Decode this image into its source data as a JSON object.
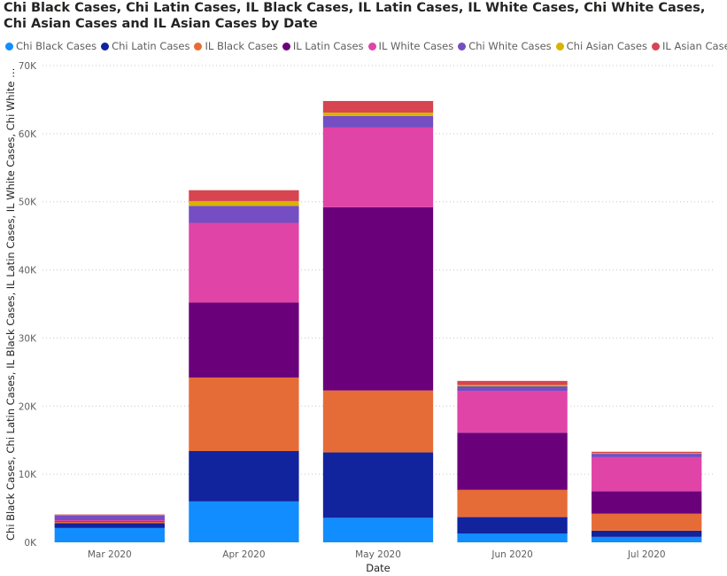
{
  "chart_data": {
    "type": "bar",
    "stacked": true,
    "title": "Chi Black Cases, Chi Latin Cases, IL Black Cases, IL Latin Cases, IL White Cases, Chi White Cases, Chi Asian Cases and IL Asian Cases by Date",
    "xlabel": "Date",
    "ylabel": "Chi Black Cases, Chi Latin Cases, IL Black Cases, IL Latin Cases, IL White Cases, Chi White Cases, Chi Asian Cases and IL Asian Cases",
    "ylim": [
      0,
      70000
    ],
    "yticks": [
      0,
      10000,
      20000,
      30000,
      40000,
      50000,
      60000,
      70000
    ],
    "ytick_labels": [
      "0K",
      "10K",
      "20K",
      "30K",
      "40K",
      "50K",
      "60K",
      "70K"
    ],
    "grid": true,
    "legend_position": "top-left",
    "categories": [
      "Mar 2020",
      "Apr 2020",
      "May 2020",
      "Jun 2020",
      "Jul 2020"
    ],
    "series": [
      {
        "name": "Chi Black Cases",
        "color": "#118DFF",
        "values": [
          2100,
          6000,
          3600,
          1300,
          800
        ]
      },
      {
        "name": "Chi Latin Cases",
        "color": "#12239E",
        "values": [
          700,
          7400,
          9600,
          2400,
          900
        ]
      },
      {
        "name": "IL Black Cases",
        "color": "#E66C37",
        "values": [
          200,
          10800,
          9100,
          4000,
          2500
        ]
      },
      {
        "name": "IL Latin Cases",
        "color": "#6B007B",
        "values": [
          100,
          11000,
          26900,
          8400,
          3300
        ]
      },
      {
        "name": "IL White Cases",
        "color": "#E044A7",
        "values": [
          150,
          11700,
          11700,
          6100,
          5000
        ]
      },
      {
        "name": "Chi White Cases",
        "color": "#744EC2",
        "values": [
          750,
          2500,
          1700,
          700,
          500
        ]
      },
      {
        "name": "Chi Asian Cases",
        "color": "#D9B300",
        "values": [
          50,
          700,
          500,
          200,
          100
        ]
      },
      {
        "name": "IL Asian Cases",
        "color": "#D64550",
        "values": [
          50,
          1600,
          1700,
          600,
          200
        ]
      }
    ]
  }
}
